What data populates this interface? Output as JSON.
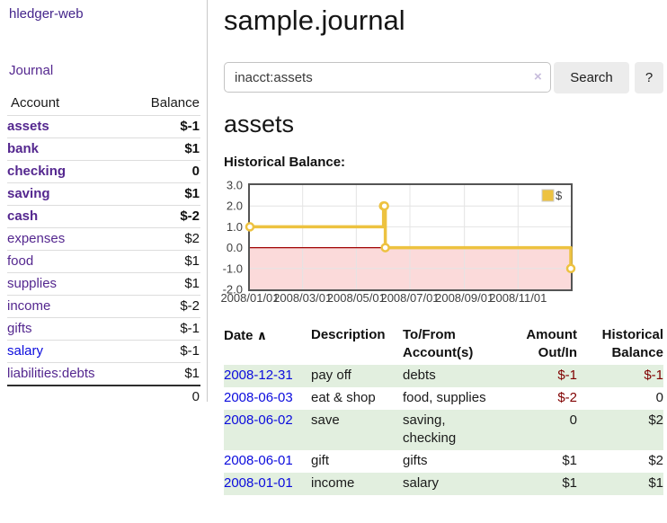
{
  "brand": {
    "label": "hledger-web"
  },
  "nav": {
    "journal": "Journal"
  },
  "sidebar": {
    "headers": {
      "account": "Account",
      "balance": "Balance"
    },
    "accounts": [
      {
        "label": "assets",
        "balance": "$-1",
        "depth": 1,
        "emph": true,
        "label_style": "purple",
        "balance_style": "neg-strong"
      },
      {
        "label": "bank",
        "balance": "$1",
        "depth": 2,
        "emph": true,
        "label_style": "purple",
        "balance_style": "plain"
      },
      {
        "label": "checking",
        "balance": "0",
        "depth": 3,
        "emph": true,
        "label_style": "purple",
        "balance_style": "plain"
      },
      {
        "label": "saving",
        "balance": "$1",
        "depth": 3,
        "emph": true,
        "label_style": "purple",
        "balance_style": "plain"
      },
      {
        "label": "cash",
        "balance": "$-2",
        "depth": 2,
        "emph": true,
        "label_style": "purple",
        "balance_style": "neg-strong"
      },
      {
        "label": "expenses",
        "balance": "$2",
        "depth": 1,
        "emph": false,
        "label_style": "purple",
        "balance_style": "plain"
      },
      {
        "label": "food",
        "balance": "$1",
        "depth": 2,
        "emph": false,
        "label_style": "purple",
        "balance_style": "plain"
      },
      {
        "label": "supplies",
        "balance": "$1",
        "depth": 2,
        "emph": false,
        "label_style": "purple",
        "balance_style": "plain"
      },
      {
        "label": "income",
        "balance": "$-2",
        "depth": 1,
        "emph": false,
        "label_style": "purple",
        "balance_style": "neg-soft"
      },
      {
        "label": "gifts",
        "balance": "$-1",
        "depth": 2,
        "emph": false,
        "label_style": "purple",
        "balance_style": "neg-soft"
      },
      {
        "label": "salary",
        "balance": "$-1",
        "depth": 2,
        "emph": false,
        "label_style": "blue",
        "balance_style": "neg-soft"
      },
      {
        "label": "liabilities:debts",
        "balance": "$1",
        "depth": 1,
        "emph": false,
        "label_style": "purple",
        "balance_style": "plain"
      }
    ],
    "total": "0"
  },
  "page": {
    "title": "sample.journal"
  },
  "search": {
    "value": "inacct:assets",
    "clear_icon": "×",
    "button": "Search",
    "help": "?"
  },
  "account_view": {
    "heading": "assets",
    "chart_title": "Historical Balance:"
  },
  "chart_data": {
    "type": "line",
    "step": true,
    "title": "Historical Balance",
    "series": [
      {
        "name": "$",
        "color": "#EDC240",
        "points": [
          [
            "2008-01-01",
            1
          ],
          [
            "2008-06-01",
            2
          ],
          [
            "2008-06-02",
            2
          ],
          [
            "2008-06-03",
            0
          ],
          [
            "2008-12-31",
            -1
          ]
        ]
      }
    ],
    "xrange": [
      "2008-01-01",
      "2008-12-31"
    ],
    "ylim": [
      -2,
      3
    ],
    "yticks": [
      "3.0",
      "2.0",
      "1.0",
      "0.0",
      "-1.0",
      "-2.0"
    ],
    "xticks": [
      {
        "date": "2008-01-01",
        "label": "2008/01/01"
      },
      {
        "date": "2008-03-01",
        "label": "2008/03/01"
      },
      {
        "date": "2008-05-01",
        "label": "2008/05/01"
      },
      {
        "date": "2008-07-01",
        "label": "2008/07/01"
      },
      {
        "date": "2008-09-01",
        "label": "2008/09/01"
      },
      {
        "date": "2008-11-01",
        "label": "2008/11/01"
      }
    ],
    "legend": {
      "position": "top-right",
      "entries": [
        {
          "label": "$",
          "color": "#EDC240"
        }
      ]
    },
    "grid": true,
    "negative_region_color": "#fbdada",
    "zero_line_color": "#a00000"
  },
  "register": {
    "sort_icon": "∧",
    "columns": [
      {
        "line1": "Date",
        "line2": ""
      },
      {
        "line1": "Description",
        "line2": ""
      },
      {
        "line1": "To/From",
        "line2": "Account(s)"
      },
      {
        "line1": "Amount",
        "line2": "Out/In"
      },
      {
        "line1": "Historical",
        "line2": "Balance"
      }
    ],
    "rows": [
      {
        "date": "2008-12-31",
        "description": "pay off",
        "accounts": "debts",
        "amount": "$-1",
        "balance": "$-1"
      },
      {
        "date": "2008-06-03",
        "description": "eat & shop",
        "accounts": "food, supplies",
        "amount": "$-2",
        "balance": "0"
      },
      {
        "date": "2008-06-02",
        "description": "save",
        "accounts": "saving, checking",
        "amount": "0",
        "balance": "$2"
      },
      {
        "date": "2008-06-01",
        "description": "gift",
        "accounts": "gifts",
        "amount": "$1",
        "balance": "$2"
      },
      {
        "date": "2008-01-01",
        "description": "income",
        "accounts": "salary",
        "amount": "$1",
        "balance": "$1"
      }
    ]
  }
}
